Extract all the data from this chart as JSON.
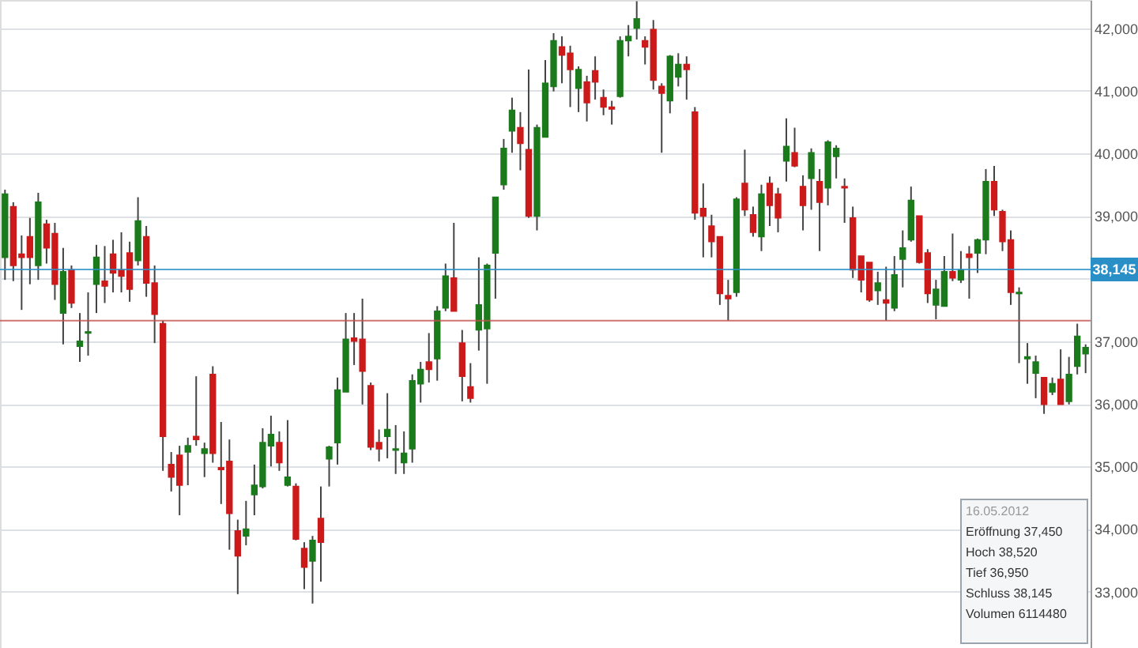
{
  "chart_data": {
    "type": "candlestick",
    "categories": [
      null,
      null,
      null,
      null,
      null,
      null,
      null,
      null,
      null,
      null,
      null,
      null,
      null,
      null,
      null,
      null,
      null,
      null,
      null,
      null,
      null,
      null,
      null,
      null,
      null,
      null,
      null,
      null,
      null,
      null,
      null,
      null,
      null,
      null,
      null,
      null,
      null,
      null,
      null,
      null,
      null,
      null,
      null,
      null,
      null,
      null,
      null,
      null,
      null,
      null,
      null,
      null,
      null,
      null,
      null,
      null,
      null,
      null,
      null,
      null,
      null,
      null,
      null,
      null,
      null,
      null,
      null,
      null,
      null,
      null,
      null,
      null,
      null,
      null,
      null,
      null,
      null,
      null,
      null,
      null,
      null,
      null,
      null,
      null,
      null,
      null,
      null,
      null,
      null,
      null,
      null,
      null,
      null,
      null,
      null,
      null,
      null,
      null,
      null,
      null,
      null,
      null,
      null,
      null,
      null,
      null,
      null,
      null,
      null,
      null,
      null,
      null,
      null,
      null,
      null,
      null,
      null,
      null,
      null,
      null,
      null,
      null,
      null,
      null,
      null,
      null,
      null,
      null,
      null,
      null,
      null
    ],
    "ohlc": [
      [
        38340,
        39420,
        37980,
        39350
      ],
      [
        39150,
        39220,
        37960,
        38210
      ],
      [
        38390,
        38690,
        37500,
        38340
      ],
      [
        38670,
        38970,
        37910,
        38340
      ],
      [
        38210,
        39370,
        37980,
        39220
      ],
      [
        38870,
        38940,
        38240,
        38490
      ],
      [
        38720,
        38890,
        37660,
        37910
      ],
      [
        37450,
        38490,
        36950,
        38110
      ],
      [
        38140,
        38210,
        37530,
        37610
      ],
      [
        36920,
        37450,
        36670,
        37000
      ],
      [
        37130,
        37780,
        36770,
        37150
      ],
      [
        37910,
        38540,
        37450,
        38340
      ],
      [
        37960,
        38520,
        37610,
        37880
      ],
      [
        38390,
        38620,
        37780,
        38090
      ],
      [
        38140,
        38740,
        37780,
        38040
      ],
      [
        38410,
        38590,
        37630,
        37830
      ],
      [
        38290,
        39300,
        38210,
        38920
      ],
      [
        38670,
        38840,
        37710,
        37930
      ],
      [
        37930,
        38210,
        36970,
        37430
      ],
      [
        37280,
        37330,
        34930,
        35480
      ],
      [
        35030,
        35230,
        34600,
        34830
      ],
      [
        35180,
        35330,
        34220,
        34700
      ],
      [
        35230,
        35460,
        34700,
        35330
      ],
      [
        35480,
        36440,
        35330,
        35430
      ],
      [
        35210,
        35380,
        34830,
        35280
      ],
      [
        36470,
        36600,
        35060,
        35210
      ],
      [
        34980,
        35710,
        34400,
        34950
      ],
      [
        35080,
        35430,
        33670,
        34250
      ],
      [
        33970,
        34150,
        32960,
        33570
      ],
      [
        33890,
        34450,
        33740,
        34000
      ],
      [
        34550,
        35030,
        34220,
        34700
      ],
      [
        34680,
        35610,
        34650,
        35380
      ],
      [
        35330,
        35810,
        35000,
        35510
      ],
      [
        35380,
        35560,
        34930,
        35060
      ],
      [
        34700,
        35740,
        34680,
        34830
      ],
      [
        34680,
        34730,
        33820,
        33840
      ],
      [
        33690,
        33790,
        33040,
        33390
      ],
      [
        33490,
        33890,
        32810,
        33820
      ],
      [
        34170,
        34680,
        33160,
        33790
      ],
      [
        35120,
        35330,
        34680,
        35310
      ],
      [
        35380,
        36420,
        35030,
        36220
      ],
      [
        36190,
        37450,
        36190,
        37030
      ],
      [
        37050,
        37450,
        36620,
        37000
      ],
      [
        37030,
        37680,
        35990,
        36520
      ],
      [
        36290,
        36340,
        35260,
        35310
      ],
      [
        35380,
        35590,
        35080,
        35280
      ],
      [
        35480,
        36170,
        35130,
        35590
      ],
      [
        35260,
        35660,
        34880,
        35280
      ],
      [
        35060,
        35560,
        34880,
        35210
      ],
      [
        35280,
        36470,
        35060,
        36370
      ],
      [
        36320,
        36670,
        36020,
        36550
      ],
      [
        36670,
        37130,
        36340,
        36550
      ],
      [
        36720,
        37560,
        36370,
        37480
      ],
      [
        37530,
        38240,
        37480,
        38040
      ],
      [
        38010,
        38890,
        37480,
        37480
      ],
      [
        36970,
        37180,
        36040,
        36440
      ],
      [
        36270,
        36650,
        36020,
        36090
      ],
      [
        37180,
        38340,
        36850,
        37580
      ],
      [
        37200,
        38240,
        36320,
        38210
      ],
      [
        38410,
        39300,
        37680,
        39300
      ],
      [
        39500,
        40230,
        39420,
        40080
      ],
      [
        40360,
        40890,
        40010,
        40690
      ],
      [
        40410,
        40660,
        39730,
        40160
      ],
      [
        40060,
        41340,
        38970,
        39000
      ],
      [
        39000,
        40460,
        38770,
        40410
      ],
      [
        40260,
        41490,
        40260,
        41120
      ],
      [
        41070,
        41920,
        40990,
        41800
      ],
      [
        41700,
        41870,
        41120,
        41570
      ],
      [
        41600,
        41720,
        40740,
        41340
      ],
      [
        41040,
        41390,
        40660,
        41340
      ],
      [
        41140,
        41240,
        40510,
        40810
      ],
      [
        41320,
        41550,
        40860,
        41140
      ],
      [
        40890,
        41020,
        40610,
        40740
      ],
      [
        40740,
        40840,
        40460,
        40710
      ],
      [
        40910,
        41870,
        40890,
        41800
      ],
      [
        41800,
        42050,
        41550,
        41870
      ],
      [
        42000,
        42430,
        41820,
        42150
      ],
      [
        41800,
        41870,
        41420,
        41700
      ],
      [
        41980,
        42130,
        41020,
        41170
      ],
      [
        41070,
        41120,
        40010,
        40960
      ],
      [
        40840,
        41570,
        40640,
        41550
      ],
      [
        41220,
        41600,
        41070,
        41420
      ],
      [
        41420,
        41550,
        40860,
        41340
      ],
      [
        40660,
        40740,
        38940,
        39050
      ],
      [
        39120,
        39520,
        38340,
        39000
      ],
      [
        38840,
        39020,
        38340,
        38590
      ],
      [
        38670,
        38670,
        37580,
        37760
      ],
      [
        37730,
        37980,
        37330,
        37680
      ],
      [
        37780,
        39300,
        37710,
        39270
      ],
      [
        39520,
        40060,
        39000,
        39100
      ],
      [
        39020,
        39150,
        38670,
        38740
      ],
      [
        38670,
        39500,
        38440,
        39350
      ],
      [
        39520,
        39630,
        38840,
        39170
      ],
      [
        39350,
        39450,
        38740,
        38970
      ],
      [
        39880,
        40560,
        39550,
        40110
      ],
      [
        40010,
        40410,
        39780,
        39800
      ],
      [
        39470,
        39650,
        38770,
        39170
      ],
      [
        39600,
        40080,
        39100,
        40010
      ],
      [
        39550,
        39750,
        38440,
        39220
      ],
      [
        39450,
        40210,
        39170,
        40180
      ],
      [
        39950,
        40130,
        39600,
        40080
      ],
      [
        39470,
        39600,
        38890,
        39450
      ],
      [
        38970,
        39150,
        38010,
        38140
      ],
      [
        38360,
        38360,
        37780,
        37980
      ],
      [
        38260,
        38260,
        37630,
        37660
      ],
      [
        37810,
        38110,
        37580,
        37930
      ],
      [
        37660,
        38190,
        37330,
        37610
      ],
      [
        37530,
        38360,
        37480,
        38060
      ],
      [
        38310,
        38770,
        37860,
        38490
      ],
      [
        38620,
        39470,
        38590,
        39250
      ],
      [
        39000,
        39000,
        38240,
        38260
      ],
      [
        38410,
        38470,
        37610,
        37760
      ],
      [
        37580,
        37980,
        37350,
        37830
      ],
      [
        37560,
        38360,
        37560,
        38110
      ],
      [
        38110,
        38720,
        37960,
        38010
      ],
      [
        37980,
        38440,
        37930,
        38140
      ],
      [
        38390,
        38520,
        37680,
        38340
      ],
      [
        38410,
        38640,
        38090,
        38620
      ],
      [
        38620,
        39750,
        38390,
        39550
      ],
      [
        39550,
        39800,
        39000,
        39100
      ],
      [
        39070,
        39100,
        38440,
        38590
      ],
      [
        38620,
        38770,
        37580,
        37780
      ],
      [
        37760,
        37860,
        36650,
        37780
      ],
      [
        36720,
        36970,
        36320,
        36750
      ],
      [
        36490,
        36770,
        36090,
        36670
      ],
      [
        36420,
        36420,
        35840,
        35990
      ],
      [
        36190,
        36420,
        36140,
        36320
      ],
      [
        36390,
        36870,
        35990,
        35990
      ],
      [
        36040,
        36750,
        35990,
        36470
      ],
      [
        36600,
        37280,
        36470,
        37080
      ],
      [
        36800,
        36950,
        36490,
        36900
      ]
    ],
    "colors": [
      "#1b7a1b",
      "#cc1a1a",
      "#cc1a1a",
      "#cc1a1a",
      "#1b7a1b",
      "#cc1a1a",
      "#cc1a1a",
      "#1b7a1b",
      "#cc1a1a",
      "#1b7a1b",
      "#1b7a1b",
      "#1b7a1b",
      "#cc1a1a",
      "#cc1a1a",
      "#cc1a1a",
      "#cc1a1a",
      "#1b7a1b",
      "#cc1a1a",
      "#cc1a1a",
      "#cc1a1a",
      "#cc1a1a",
      "#cc1a1a",
      "#1b7a1b",
      "#cc1a1a",
      "#1b7a1b",
      "#cc1a1a",
      "#cc1a1a",
      "#cc1a1a",
      "#cc1a1a",
      "#1b7a1b",
      "#1b7a1b",
      "#1b7a1b",
      "#1b7a1b",
      "#cc1a1a",
      "#1b7a1b",
      "#cc1a1a",
      "#cc1a1a",
      "#1b7a1b",
      "#cc1a1a",
      "#1b7a1b",
      "#1b7a1b",
      "#1b7a1b",
      "#cc1a1a",
      "#cc1a1a",
      "#cc1a1a",
      "#cc1a1a",
      "#1b7a1b",
      "#1b7a1b",
      "#1b7a1b",
      "#1b7a1b",
      "#1b7a1b",
      "#cc1a1a",
      "#1b7a1b",
      "#1b7a1b",
      "#cc1a1a",
      "#cc1a1a",
      "#cc1a1a",
      "#1b7a1b",
      "#1b7a1b",
      "#1b7a1b",
      "#1b7a1b",
      "#1b7a1b",
      "#cc1a1a",
      "#cc1a1a",
      "#1b7a1b",
      "#1b7a1b",
      "#1b7a1b",
      "#cc1a1a",
      "#cc1a1a",
      "#1b7a1b",
      "#cc1a1a",
      "#cc1a1a",
      "#cc1a1a",
      "#cc1a1a",
      "#1b7a1b",
      "#1b7a1b",
      "#1b7a1b",
      "#cc1a1a",
      "#cc1a1a",
      "#cc1a1a",
      "#1b7a1b",
      "#1b7a1b",
      "#cc1a1a",
      "#cc1a1a",
      "#cc1a1a",
      "#cc1a1a",
      "#cc1a1a",
      "#cc1a1a",
      "#1b7a1b",
      "#cc1a1a",
      "#cc1a1a",
      "#1b7a1b",
      "#cc1a1a",
      "#cc1a1a",
      "#1b7a1b",
      "#cc1a1a",
      "#cc1a1a",
      "#1b7a1b",
      "#cc1a1a",
      "#1b7a1b",
      "#1b7a1b",
      "#cc1a1a",
      "#cc1a1a",
      "#cc1a1a",
      "#cc1a1a",
      "#1b7a1b",
      "#cc1a1a",
      "#1b7a1b",
      "#1b7a1b",
      "#1b7a1b",
      "#cc1a1a",
      "#cc1a1a",
      "#1b7a1b",
      "#1b7a1b",
      "#cc1a1a",
      "#1b7a1b",
      "#cc1a1a",
      "#1b7a1b",
      "#1b7a1b",
      "#cc1a1a",
      "#cc1a1a",
      "#cc1a1a",
      "#1b7a1b",
      "#1b7a1b",
      "#1b7a1b",
      "#cc1a1a",
      "#1b7a1b",
      "#cc1a1a",
      "#1b7a1b",
      "#1b7a1b",
      "#1b7a1b"
    ],
    "ylim": [
      32100,
      42450
    ],
    "yticks": [
      {
        "value": 33000,
        "label": "33,000"
      },
      {
        "value": 34000,
        "label": "34,000"
      },
      {
        "value": 35000,
        "label": "35,000"
      },
      {
        "value": 36000,
        "label": "36,000"
      },
      {
        "value": 37000,
        "label": "37,000"
      },
      {
        "value": 38000,
        "label": null
      },
      {
        "value": 39000,
        "label": "39,000"
      },
      {
        "value": 40000,
        "label": "40,000"
      },
      {
        "value": 41000,
        "label": "41,000"
      },
      {
        "value": 42000,
        "label": "42,000"
      }
    ],
    "grid": "y",
    "tick_labels": "y",
    "ref_lines": [
      {
        "axis": "y",
        "value": 37330,
        "label": null,
        "color": "#c0504d"
      },
      {
        "axis": "y",
        "value": 38145,
        "label": "38,145",
        "color": "#2a8fc7"
      }
    ],
    "annotations": [
      "16.05.2012",
      "Eröffnung 37,450",
      "Hoch 38,520",
      "Tief 36,950",
      "Schluss 38,145",
      "Volumen 6114480"
    ]
  }
}
